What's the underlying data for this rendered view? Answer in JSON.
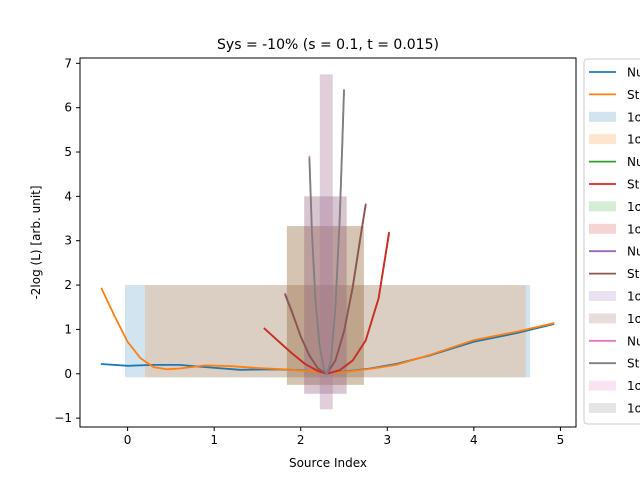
{
  "chart_data": {
    "type": "line",
    "title": "Sys = -10% (s = 0.1, t = 0.015)",
    "xlabel": "Source Index",
    "ylabel": "-2log (L) [arb. unit]",
    "xlim": [
      -0.55,
      5.18
    ],
    "ylim": [
      -1.2,
      7.12
    ],
    "xticks": [
      0,
      1,
      2,
      3,
      4,
      5
    ],
    "yticks": [
      -1,
      0,
      1,
      2,
      3,
      4,
      5,
      6,
      7
    ],
    "grid": false,
    "legend_position": "outside right (clipped)",
    "series": [
      {
        "kind": "line",
        "name": "Nu",
        "color": "#1f77b4",
        "points": [
          [
            -0.3,
            0.22
          ],
          [
            0,
            0.18
          ],
          [
            0.3,
            0.2
          ],
          [
            0.6,
            0.2
          ],
          [
            0.9,
            0.15
          ],
          [
            1.3,
            0.09
          ],
          [
            1.7,
            0.1
          ],
          [
            2.0,
            0.08
          ],
          [
            2.2,
            0.04
          ],
          [
            2.3,
            0.02
          ],
          [
            2.5,
            0.05
          ],
          [
            2.8,
            0.12
          ],
          [
            3.1,
            0.22
          ],
          [
            3.5,
            0.42
          ],
          [
            4.0,
            0.72
          ],
          [
            4.5,
            0.92
          ],
          [
            4.92,
            1.12
          ]
        ]
      },
      {
        "kind": "line",
        "name": "St",
        "color": "#ff7f0e",
        "points": [
          [
            -0.3,
            1.92
          ],
          [
            -0.15,
            1.3
          ],
          [
            0,
            0.72
          ],
          [
            0.15,
            0.35
          ],
          [
            0.3,
            0.15
          ],
          [
            0.45,
            0.1
          ],
          [
            0.6,
            0.12
          ],
          [
            0.9,
            0.19
          ],
          [
            1.2,
            0.17
          ],
          [
            1.5,
            0.13
          ],
          [
            1.8,
            0.1
          ],
          [
            2.1,
            0.06
          ],
          [
            2.3,
            0.02
          ],
          [
            2.5,
            0.04
          ],
          [
            2.8,
            0.11
          ],
          [
            3.1,
            0.2
          ],
          [
            3.5,
            0.43
          ],
          [
            4.0,
            0.76
          ],
          [
            4.5,
            0.95
          ],
          [
            4.92,
            1.14
          ]
        ]
      },
      {
        "kind": "band",
        "name": "1σ",
        "color": "#1f77b4",
        "opacity": 0.2,
        "x": [
          -0.03,
          4.65
        ],
        "y": [
          -0.08,
          2.0
        ]
      },
      {
        "kind": "band",
        "name": "1σ",
        "color": "#ff7f0e",
        "opacity": 0.2,
        "x": [
          0.2,
          4.6
        ],
        "y": [
          -0.08,
          2.0
        ]
      },
      {
        "kind": "line",
        "name": "Nu",
        "color": "#2ca02c",
        "points": [
          [
            1.58,
            1.02
          ],
          [
            1.75,
            0.72
          ],
          [
            1.9,
            0.46
          ],
          [
            2.05,
            0.22
          ],
          [
            2.2,
            0.06
          ],
          [
            2.3,
            0.0
          ],
          [
            2.45,
            0.08
          ],
          [
            2.6,
            0.3
          ],
          [
            2.75,
            0.75
          ],
          [
            2.9,
            1.7
          ],
          [
            3.02,
            3.15
          ]
        ]
      },
      {
        "kind": "line",
        "name": "St",
        "color": "#d62728",
        "points": [
          [
            1.58,
            1.02
          ],
          [
            1.75,
            0.72
          ],
          [
            1.9,
            0.46
          ],
          [
            2.05,
            0.22
          ],
          [
            2.2,
            0.06
          ],
          [
            2.3,
            0.0
          ],
          [
            2.45,
            0.08
          ],
          [
            2.6,
            0.3
          ],
          [
            2.75,
            0.75
          ],
          [
            2.9,
            1.7
          ],
          [
            3.02,
            3.18
          ]
        ]
      },
      {
        "kind": "band",
        "name": "1σ",
        "color": "#2ca02c",
        "opacity": 0.2,
        "x": [
          1.84,
          2.73
        ],
        "y": [
          -0.25,
          3.33
        ]
      },
      {
        "kind": "band",
        "name": "1σ",
        "color": "#d62728",
        "opacity": 0.2,
        "x": [
          1.84,
          2.73
        ],
        "y": [
          -0.25,
          3.33
        ]
      },
      {
        "kind": "line",
        "name": "Nu",
        "color": "#9467bd",
        "points": [
          [
            1.82,
            1.8
          ],
          [
            1.9,
            1.4
          ],
          [
            2.0,
            0.85
          ],
          [
            2.1,
            0.42
          ],
          [
            2.2,
            0.12
          ],
          [
            2.3,
            0.0
          ],
          [
            2.4,
            0.3
          ],
          [
            2.5,
            0.95
          ],
          [
            2.6,
            1.95
          ],
          [
            2.7,
            3.2
          ],
          [
            2.75,
            3.8
          ]
        ]
      },
      {
        "kind": "line",
        "name": "St",
        "color": "#8c564b",
        "points": [
          [
            1.82,
            1.78
          ],
          [
            1.9,
            1.38
          ],
          [
            2.0,
            0.84
          ],
          [
            2.1,
            0.41
          ],
          [
            2.2,
            0.12
          ],
          [
            2.3,
            0.0
          ],
          [
            2.4,
            0.3
          ],
          [
            2.5,
            0.95
          ],
          [
            2.6,
            1.95
          ],
          [
            2.7,
            3.2
          ],
          [
            2.75,
            3.82
          ]
        ]
      },
      {
        "kind": "band",
        "name": "1σ",
        "color": "#9467bd",
        "opacity": 0.2,
        "x": [
          2.04,
          2.53
        ],
        "y": [
          -0.45,
          4.0
        ]
      },
      {
        "kind": "band",
        "name": "1σ",
        "color": "#8c564b",
        "opacity": 0.2,
        "x": [
          2.04,
          2.53
        ],
        "y": [
          -0.45,
          4.0
        ]
      },
      {
        "kind": "line",
        "name": "Nu",
        "color": "#e377c2",
        "points": [
          [
            2.1,
            4.9
          ],
          [
            2.13,
            3.2
          ],
          [
            2.17,
            1.7
          ],
          [
            2.22,
            0.6
          ],
          [
            2.27,
            0.1
          ],
          [
            2.3,
            0.0
          ],
          [
            2.35,
            0.3
          ],
          [
            2.4,
            1.5
          ],
          [
            2.45,
            3.5
          ],
          [
            2.48,
            5.2
          ],
          [
            2.5,
            6.4
          ]
        ]
      },
      {
        "kind": "line",
        "name": "St",
        "color": "#7f7f7f",
        "points": [
          [
            2.1,
            4.85
          ],
          [
            2.13,
            3.15
          ],
          [
            2.17,
            1.68
          ],
          [
            2.22,
            0.6
          ],
          [
            2.27,
            0.1
          ],
          [
            2.3,
            0.0
          ],
          [
            2.35,
            0.3
          ],
          [
            2.4,
            1.5
          ],
          [
            2.45,
            3.48
          ],
          [
            2.48,
            5.18
          ],
          [
            2.5,
            6.38
          ]
        ]
      },
      {
        "kind": "band",
        "name": "1σ",
        "color": "#e377c2",
        "opacity": 0.2,
        "x": [
          2.22,
          2.37
        ],
        "y": [
          -0.8,
          6.75
        ]
      },
      {
        "kind": "band",
        "name": "1σ",
        "color": "#7f7f7f",
        "opacity": 0.2,
        "x": [
          2.22,
          2.37
        ],
        "y": [
          -0.8,
          6.75
        ]
      }
    ]
  }
}
